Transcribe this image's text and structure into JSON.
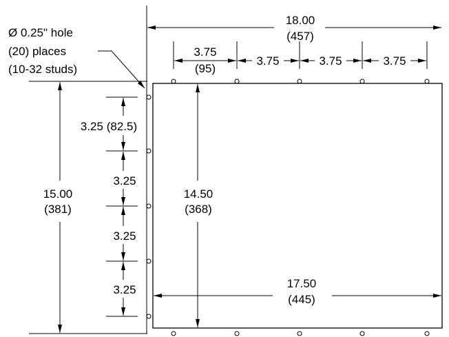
{
  "hole_note": {
    "line1": "Ø 0.25\" hole",
    "line2": "(20) places",
    "line3": "(10-32 studs)"
  },
  "dimensions": {
    "overall_width": {
      "value": "18.00",
      "metric": "(457)"
    },
    "hole_spacing_top_first": {
      "value": "3.75",
      "metric": "(95)"
    },
    "hole_spacing_top": [
      "3.75",
      "3.75",
      "3.75"
    ],
    "overall_height": {
      "value": "15.00",
      "metric": "(381)"
    },
    "panel_height": {
      "value": "14.50",
      "metric": "(368)"
    },
    "panel_width": {
      "value": "17.50",
      "metric": "(445)"
    },
    "hole_spacing_side_first": {
      "value": "3.25",
      "metric": "(82.5)"
    },
    "hole_spacing_side": [
      "3.25",
      "3.25",
      "3.25"
    ]
  }
}
